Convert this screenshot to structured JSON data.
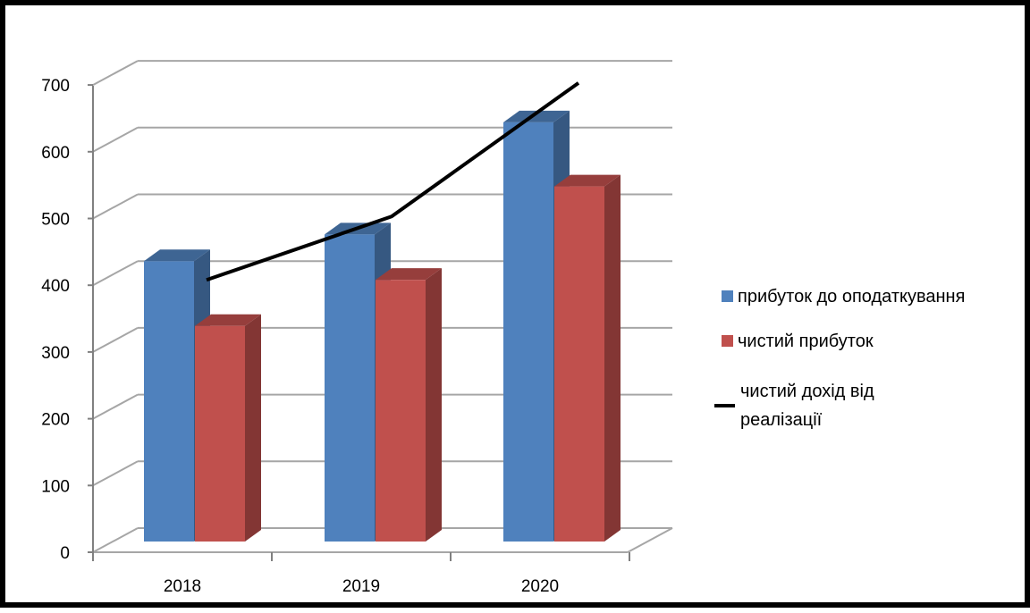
{
  "chart_data": {
    "type": "bar",
    "categories": [
      "2018",
      "2019",
      "2020"
    ],
    "series": [
      {
        "name": "прибуток до оподаткування",
        "kind": "bar",
        "values": [
          420,
          460,
          628
        ],
        "color": "#4f81bd"
      },
      {
        "name": "чистий прибуток",
        "kind": "bar",
        "values": [
          323,
          392,
          532
        ],
        "color": "#c0504d"
      },
      {
        "name_lines": [
          "чистий дохід від",
          "реалізації"
        ],
        "kind": "line",
        "values": [
          408,
          503,
          703
        ],
        "color": "#000000"
      }
    ],
    "y_ticks": [
      "0",
      "100",
      "200",
      "300",
      "400",
      "500",
      "600",
      "700"
    ],
    "ylim": [
      0,
      700
    ],
    "grid": true,
    "style": "3d-clustered-column",
    "legend_position": "right"
  }
}
